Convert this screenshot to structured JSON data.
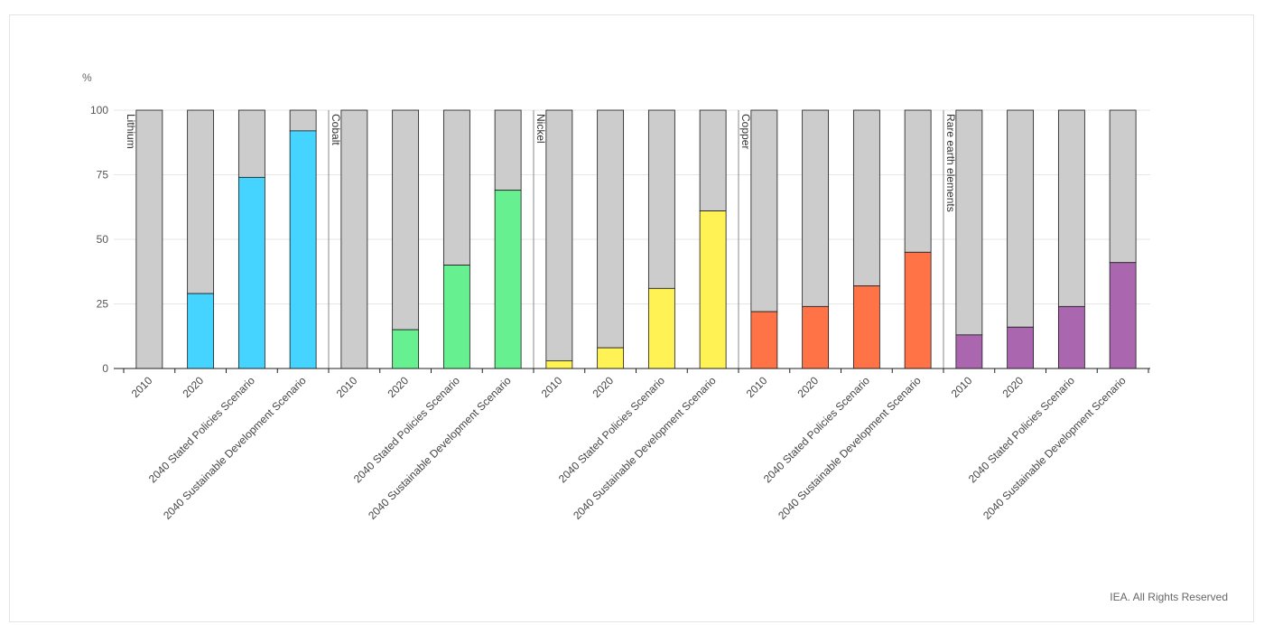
{
  "copyright": "IEA. All Rights Reserved",
  "chart_data": {
    "type": "bar",
    "stacked": true,
    "ylabel": "%",
    "ylim": [
      0,
      100
    ],
    "yticks": [
      0,
      25,
      50,
      75,
      100
    ],
    "grid": true,
    "categories": [
      "2010",
      "2020",
      "2040 Stated Policies Scenario",
      "2040 Sustainable Development Scenario"
    ],
    "groups": [
      {
        "name": "Lithium",
        "color": "#45d3ff",
        "values": [
          0,
          29,
          74,
          92
        ]
      },
      {
        "name": "Cobalt",
        "color": "#66f090",
        "values": [
          0,
          15,
          40,
          69
        ]
      },
      {
        "name": "Nickel",
        "color": "#fff254",
        "values": [
          3,
          8,
          31,
          61
        ]
      },
      {
        "name": "Copper",
        "color": "#ff7347",
        "values": [
          22,
          24,
          32,
          45
        ]
      },
      {
        "name": "Rare earth elements",
        "color": "#ab66b0",
        "values": [
          13,
          16,
          24,
          41
        ]
      }
    ],
    "remainder_color": "#cccccc",
    "edge_color": "#1a1a1a",
    "grid_color": "#e6e6e6"
  }
}
